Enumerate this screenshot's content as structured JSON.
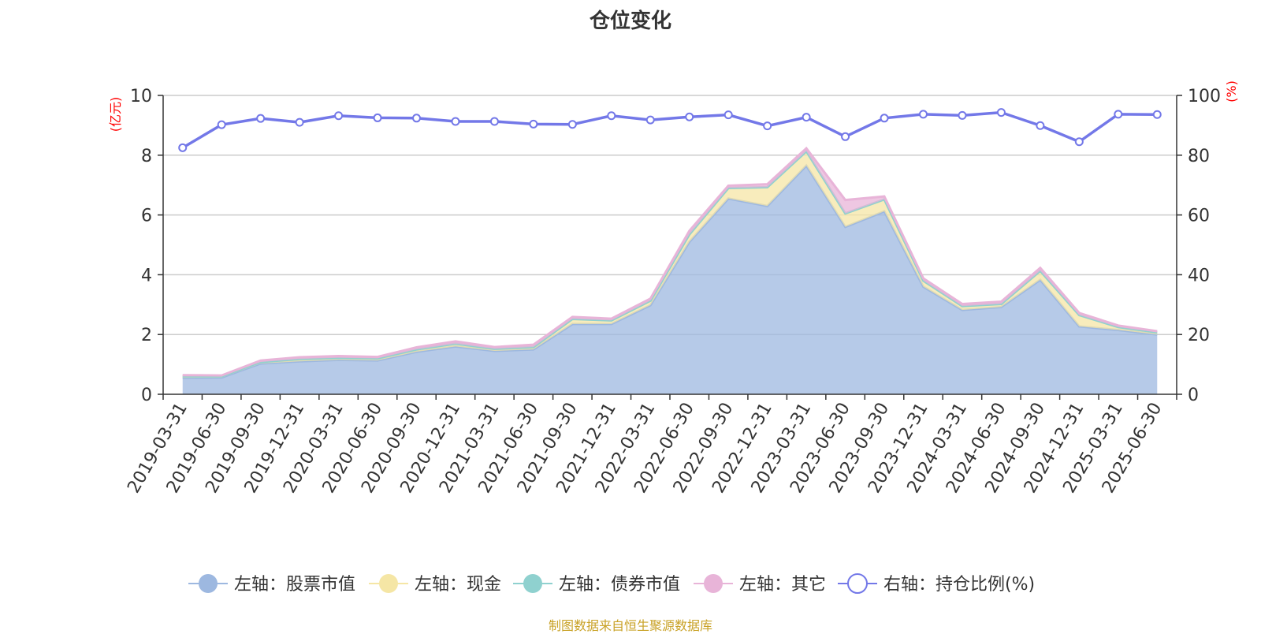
{
  "title": "仓位变化",
  "source": "制图数据来自恒生聚源数据库",
  "chart_data": {
    "type": "area",
    "categories": [
      "2019-03-31",
      "2019-06-30",
      "2019-09-30",
      "2019-12-31",
      "2020-03-31",
      "2020-06-30",
      "2020-09-30",
      "2020-12-31",
      "2021-03-31",
      "2021-06-30",
      "2021-09-30",
      "2021-12-31",
      "2022-03-31",
      "2022-06-30",
      "2022-09-30",
      "2022-12-31",
      "2023-03-31",
      "2023-06-30",
      "2023-09-30",
      "2023-12-31",
      "2024-03-31",
      "2024-06-30",
      "2024-09-30",
      "2024-12-31",
      "2025-03-31",
      "2025-06-30"
    ],
    "left_axis": {
      "label": "亿元",
      "ylim": [
        0,
        10
      ],
      "ticks": [
        0,
        2,
        4,
        6,
        8,
        10
      ]
    },
    "right_axis": {
      "label": "%",
      "ylim": [
        0,
        100
      ],
      "ticks": [
        0,
        20,
        40,
        60,
        80,
        100
      ]
    },
    "series": [
      {
        "name": "左轴：股票市值",
        "axis": "left",
        "color": "#9db8e0",
        "values": [
          0.55,
          0.56,
          1.03,
          1.1,
          1.15,
          1.13,
          1.42,
          1.6,
          1.45,
          1.5,
          2.35,
          2.35,
          2.98,
          5.1,
          6.55,
          6.3,
          7.65,
          5.6,
          6.12,
          3.6,
          2.82,
          2.92,
          3.83,
          2.27,
          2.15,
          2.0
        ]
      },
      {
        "name": "左轴：现金",
        "axis": "left",
        "color": "#f5e6a5",
        "values": [
          0.05,
          0.04,
          0.05,
          0.08,
          0.07,
          0.07,
          0.08,
          0.09,
          0.07,
          0.08,
          0.17,
          0.12,
          0.15,
          0.25,
          0.35,
          0.63,
          0.48,
          0.45,
          0.4,
          0.2,
          0.13,
          0.1,
          0.3,
          0.38,
          0.1,
          0.07
        ]
      },
      {
        "name": "左轴：债券市值",
        "axis": "left",
        "color": "#8fd1cf",
        "values": [
          0,
          0,
          0,
          0,
          0,
          0,
          0,
          0,
          0,
          0,
          0,
          0,
          0,
          0,
          0,
          0,
          0,
          0,
          0,
          0,
          0,
          0,
          0,
          0,
          0,
          0
        ]
      },
      {
        "name": "左轴：其它",
        "axis": "left",
        "color": "#e8b4d8",
        "values": [
          0.04,
          0.03,
          0.05,
          0.06,
          0.06,
          0.05,
          0.07,
          0.08,
          0.06,
          0.08,
          0.07,
          0.06,
          0.07,
          0.12,
          0.08,
          0.1,
          0.1,
          0.45,
          0.1,
          0.08,
          0.07,
          0.08,
          0.1,
          0.07,
          0.05,
          0.04
        ]
      },
      {
        "name": "右轴：持仓比例(%)",
        "axis": "right",
        "color": "#7378e8",
        "values": [
          82.5,
          90.2,
          92.3,
          91.0,
          93.2,
          92.5,
          92.4,
          91.3,
          91.3,
          90.4,
          90.3,
          93.2,
          91.8,
          92.8,
          93.5,
          89.8,
          92.7,
          86.2,
          92.4,
          93.7,
          93.3,
          94.3,
          89.9,
          84.5,
          93.7,
          93.6
        ]
      }
    ],
    "legend_position": "bottom",
    "grid": true
  },
  "colors": {
    "axis": "#333333",
    "grid": "#cccccc",
    "axis_label": "#ff0000",
    "title": "#333333",
    "source": "#c9a227"
  }
}
